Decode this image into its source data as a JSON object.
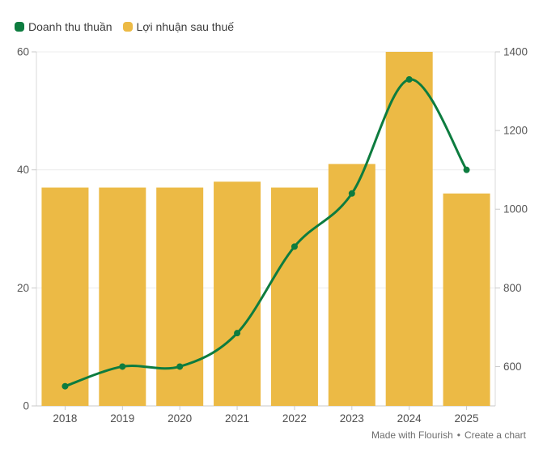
{
  "legend": {
    "items": [
      {
        "label": "Doanh thu thuần",
        "color": "#0d7c3f"
      },
      {
        "label": "Lợi nhuận sau thuế",
        "color": "#ecba45"
      }
    ]
  },
  "footer": {
    "made_with": "Made with Flourish",
    "separator": "•",
    "create_chart": "Create a chart"
  },
  "colors": {
    "line_series": "#0d7c3f",
    "bar_series": "#ecba45",
    "gridline": "#ececec",
    "axis_line": "#d9d9d9",
    "baseline": "#c9c9c9",
    "tick_label": "#565656",
    "x_label": "#4f4f4f"
  },
  "chart_data": {
    "type": "combo-bar-line",
    "title": "",
    "categories": [
      "2018",
      "2019",
      "2020",
      "2021",
      "2022",
      "2023",
      "2024",
      "2025"
    ],
    "series": [
      {
        "name": "Doanh thu thuần",
        "type": "line",
        "axis": "right",
        "color": "#0d7c3f",
        "values": [
          550,
          600,
          600,
          685,
          905,
          1040,
          1330,
          1100
        ]
      },
      {
        "name": "Lợi nhuận sau thuế",
        "type": "bar",
        "axis": "left",
        "color": "#ecba45",
        "values": [
          37,
          37,
          37,
          38,
          37,
          41,
          60,
          36
        ]
      }
    ],
    "left_axis": {
      "min": 0,
      "max": 60,
      "ticks": [
        0,
        20,
        40,
        60
      ]
    },
    "right_axis": {
      "min": 500,
      "max": 1400,
      "ticks": [
        600,
        800,
        1000,
        1200,
        1400
      ]
    },
    "grid": "horizontal-left-ticks",
    "legend_position": "top-left"
  }
}
